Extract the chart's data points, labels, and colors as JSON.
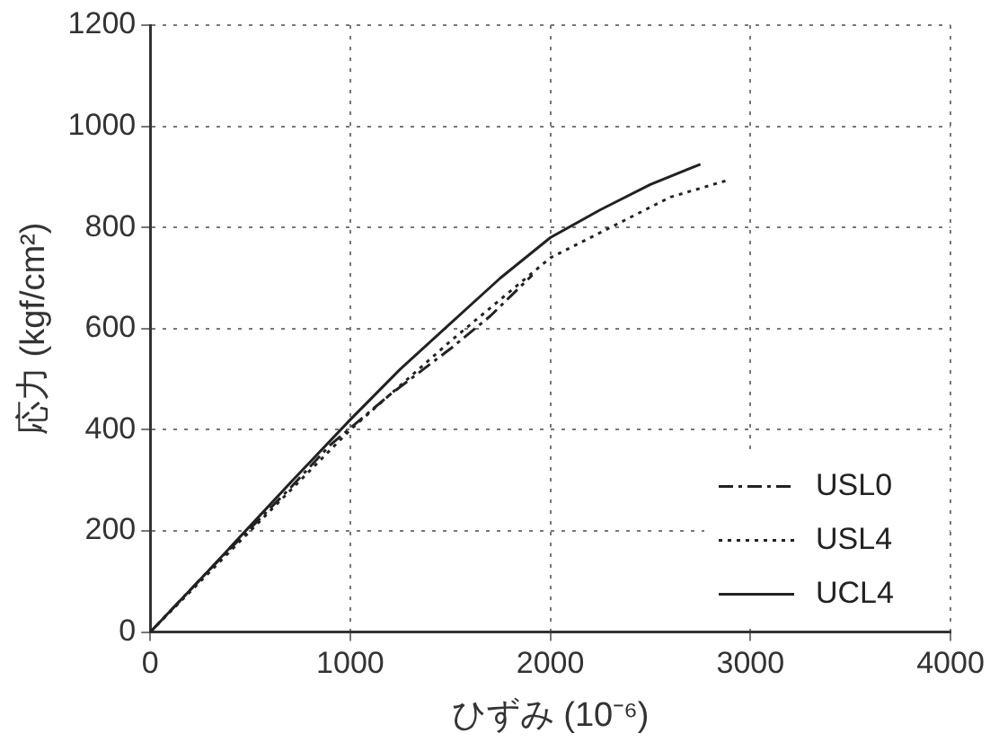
{
  "chart_data": {
    "type": "line",
    "xlabel": "ひずみ (10⁻⁶)",
    "ylabel": "応力 (kgf/cm²)",
    "xlim": [
      0,
      4000
    ],
    "xticks": [
      0,
      1000,
      2000,
      3000,
      4000
    ],
    "ylim": [
      0,
      1200
    ],
    "yticks": [
      0,
      200,
      400,
      600,
      800,
      1000,
      1200
    ],
    "grid": true,
    "legend": "bottom right",
    "marker": "none",
    "series": [
      {
        "name": "USL0",
        "color": "#222222",
        "line_style": "dashdot",
        "x": [
          0,
          300,
          500,
          700,
          900,
          1200,
          1500,
          1700,
          1910
        ],
        "values": [
          0,
          125,
          205,
          285,
          370,
          470,
          560,
          625,
          706
        ]
      },
      {
        "name": "USL4",
        "color": "#222222",
        "line_style": "dotted",
        "x": [
          0,
          300,
          500,
          700,
          1000,
          1500,
          2000,
          2300,
          2600,
          2900
        ],
        "values": [
          0,
          120,
          200,
          280,
          400,
          575,
          740,
          800,
          860,
          895
        ]
      },
      {
        "name": "UCL4",
        "color": "#222222",
        "line_style": "solid",
        "x": [
          0,
          300,
          500,
          700,
          1000,
          1250,
          1500,
          1750,
          2000,
          2250,
          2500,
          2750
        ],
        "values": [
          0,
          125,
          210,
          295,
          420,
          520,
          610,
          700,
          780,
          835,
          885,
          925
        ]
      }
    ]
  }
}
